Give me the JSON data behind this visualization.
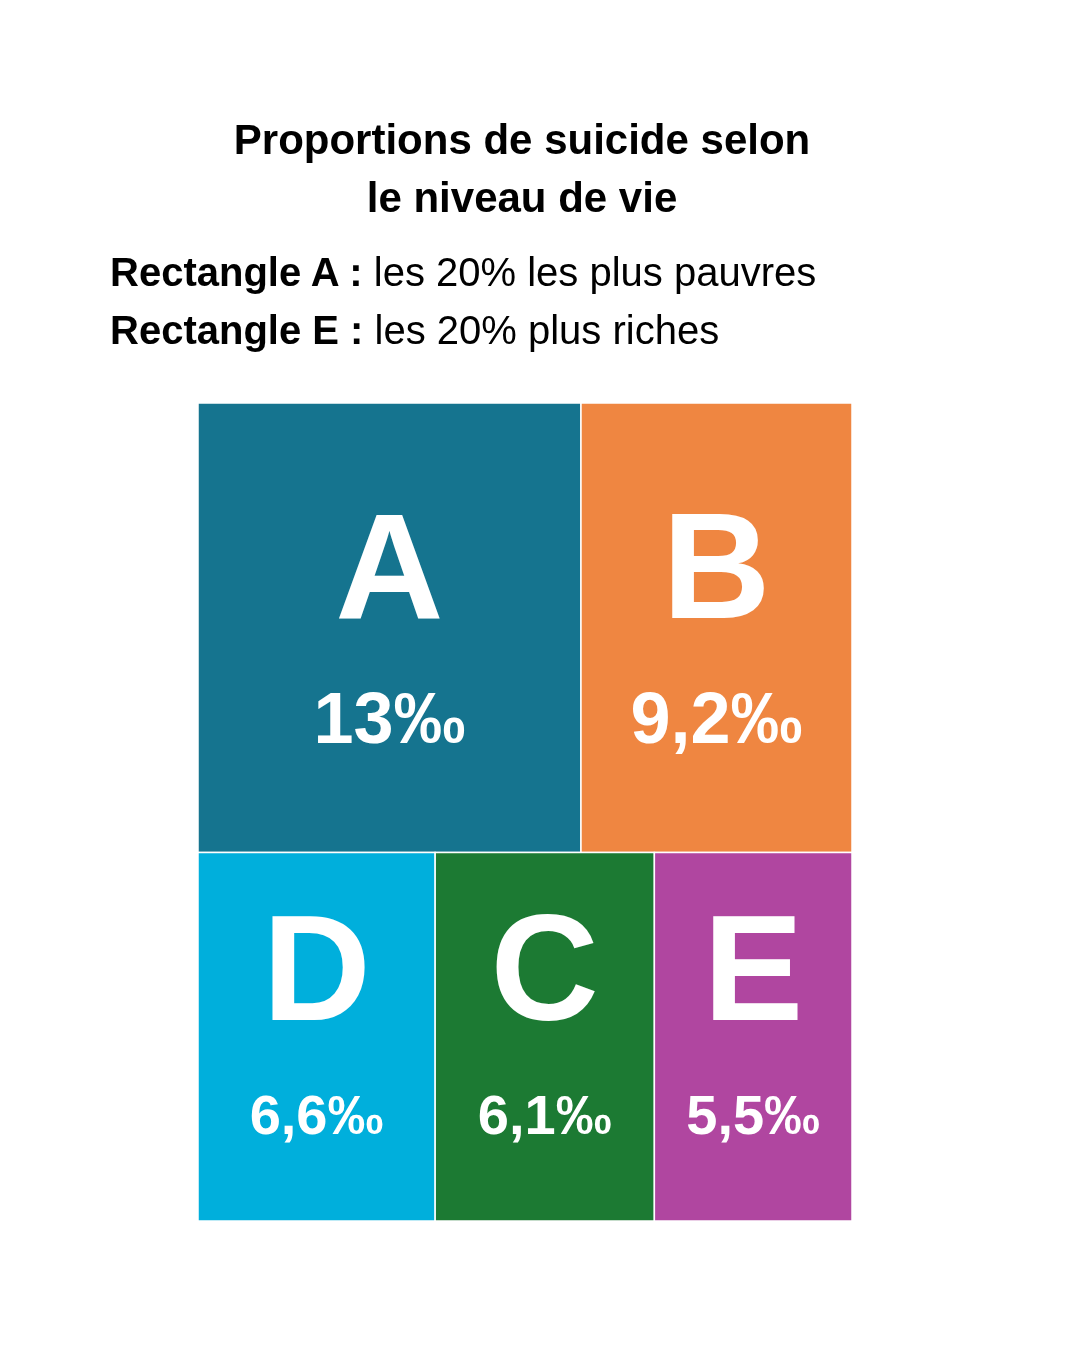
{
  "chart_data": {
    "type": "other",
    "title": "Proportions de suicide selon le niveau de vie",
    "annotations": [
      "Rectangle A : les 20% les plus pauvres",
      "Rectangle E : les 20% plus riches"
    ],
    "categories": [
      "A",
      "B",
      "D",
      "C",
      "E"
    ],
    "values": [
      13,
      9.2,
      6.6,
      6.1,
      5.5
    ],
    "value_labels": [
      "13‰",
      "9,2‰",
      "6,6‰",
      "6,1‰",
      "5,5‰"
    ],
    "colors": [
      "#15748f",
      "#ef8641",
      "#00afdc",
      "#1c7a33",
      "#b046a0"
    ]
  }
}
